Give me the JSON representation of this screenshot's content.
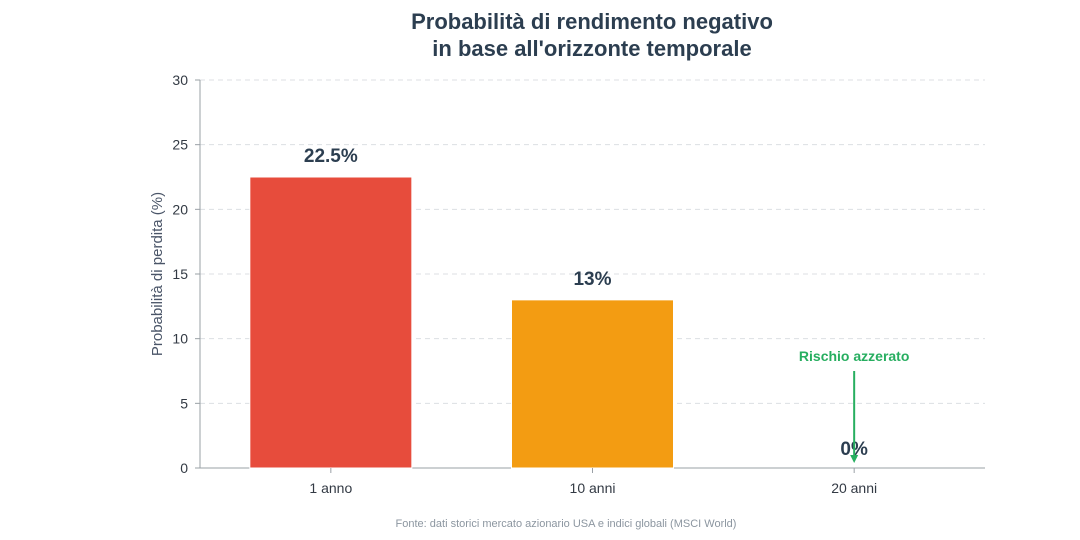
{
  "chart_data": {
    "type": "bar",
    "title_lines": [
      "Probabilità di rendimento negativo",
      "in base all'orizzonte temporale"
    ],
    "xlabel": "",
    "ylabel": "Probabilità di perdita (%)",
    "categories": [
      "1 anno",
      "10 anni",
      "20 anni"
    ],
    "values": [
      22.5,
      13,
      0
    ],
    "value_labels": [
      "22.5%",
      "13%",
      "0%"
    ],
    "bar_colors": [
      "#e74c3c",
      "#f39c12",
      "#27ae60"
    ],
    "ylim": [
      0,
      30
    ],
    "yticks": [
      0,
      5,
      10,
      15,
      20,
      25,
      30
    ],
    "grid": "horizontal dashed",
    "annotation": {
      "text": "Rischio azzerato",
      "category": "20 anni",
      "from_y": 7.5,
      "to_y": 0,
      "color": "#27ae60"
    },
    "source": "Fonte: dati storici mercato azionario USA e indici globali (MSCI World)"
  }
}
